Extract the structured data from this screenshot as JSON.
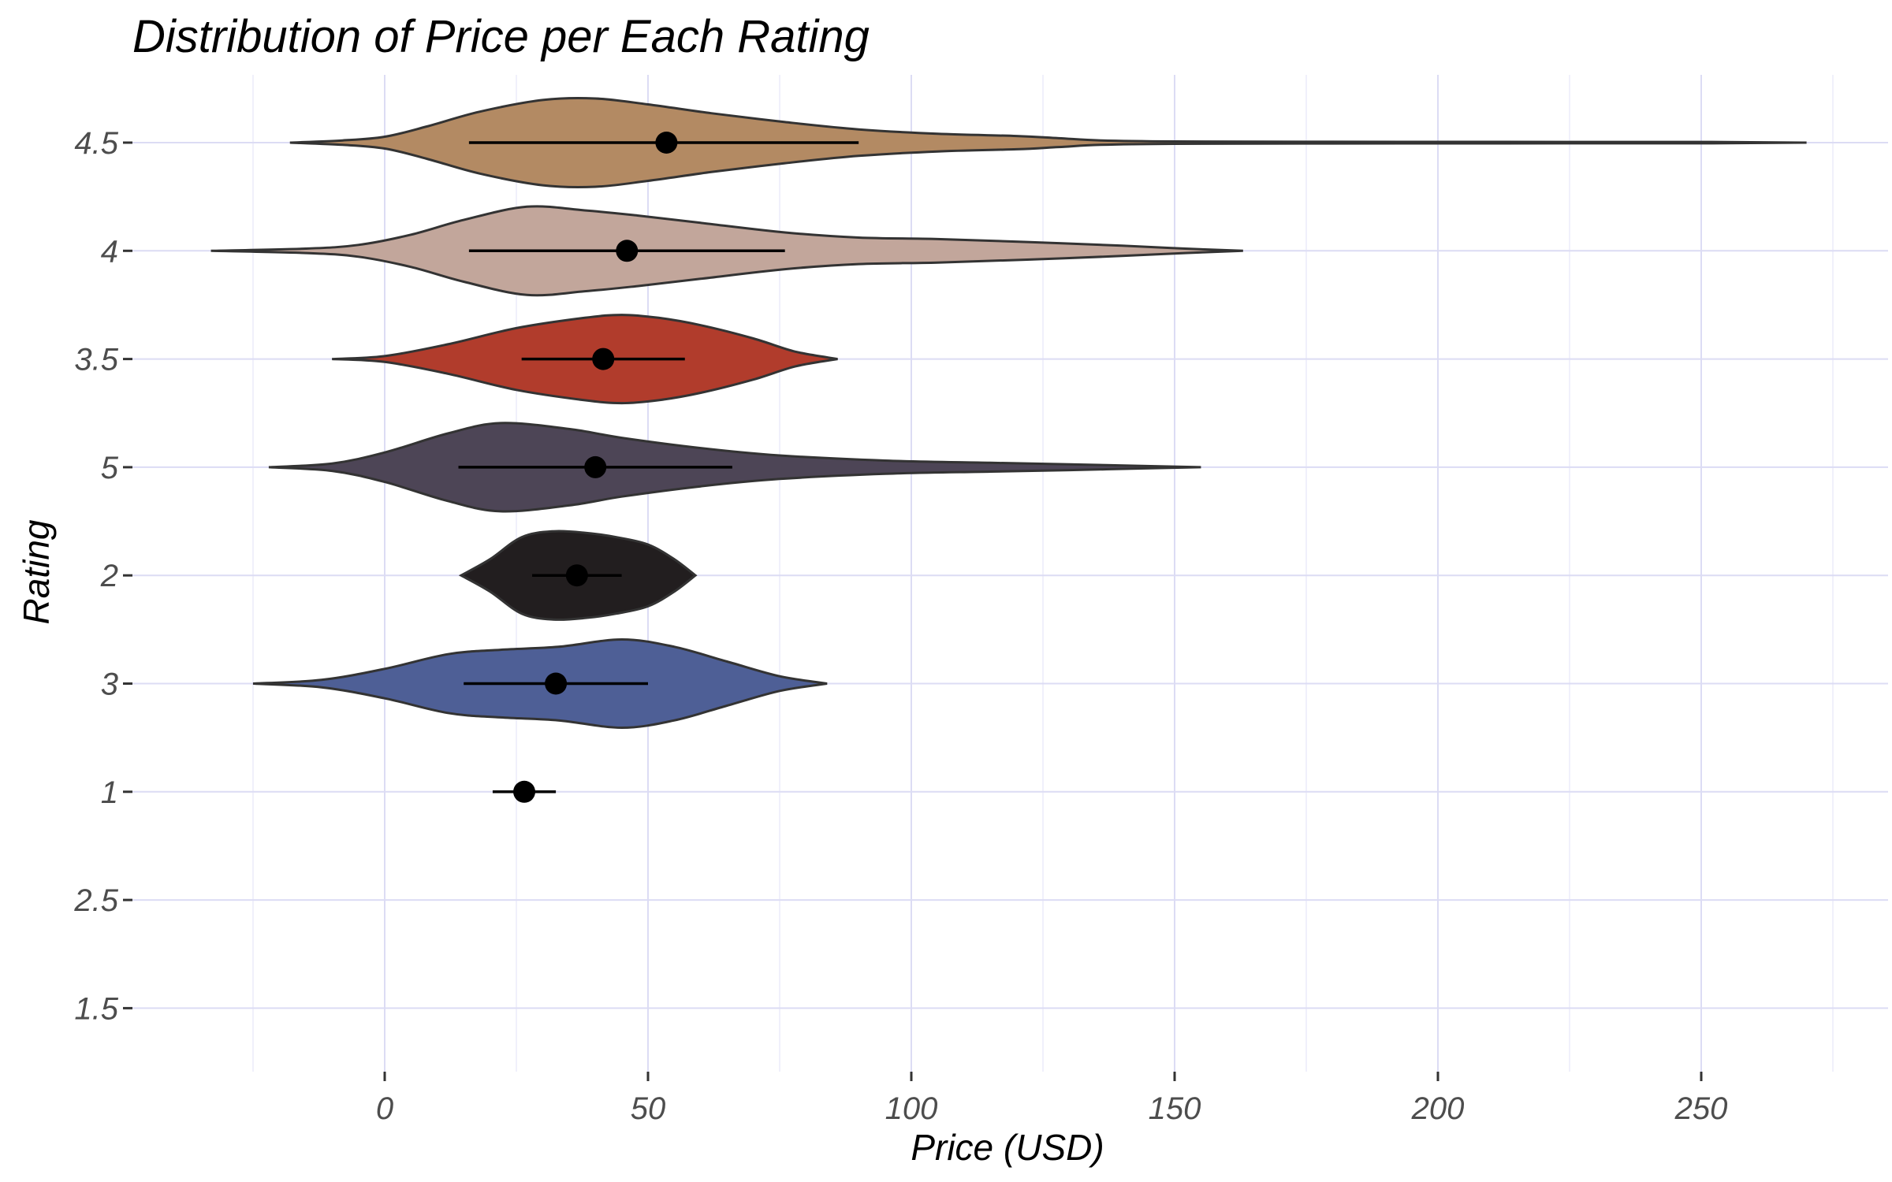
{
  "chart_data": {
    "type": "violin",
    "title": "Distribution of Price per Each Rating",
    "xlabel": "Price (USD)",
    "ylabel": "Rating",
    "xlim": [
      -50,
      285
    ],
    "x_ticks": [
      0,
      50,
      100,
      150,
      200,
      250
    ],
    "x_tick_labels": [
      "0",
      "50",
      "100",
      "150",
      "200",
      "250"
    ],
    "categories": [
      "4.5",
      "4",
      "3.5",
      "5",
      "2",
      "3",
      "1",
      "2.5",
      "1.5"
    ],
    "grid": true,
    "legend": "none",
    "series": [
      {
        "rating": "4.5",
        "color": "#B38A63",
        "mean": 53.5,
        "line_lo": 16,
        "line_hi": 90,
        "density": [
          [
            -18,
            0.0
          ],
          [
            -8,
            0.03
          ],
          [
            0,
            0.08
          ],
          [
            8,
            0.22
          ],
          [
            18,
            0.42
          ],
          [
            30,
            0.58
          ],
          [
            40,
            0.6
          ],
          [
            50,
            0.52
          ],
          [
            62,
            0.4
          ],
          [
            76,
            0.28
          ],
          [
            90,
            0.18
          ],
          [
            105,
            0.12
          ],
          [
            120,
            0.09
          ],
          [
            128,
            0.06
          ],
          [
            136,
            0.03
          ],
          [
            150,
            0.016
          ],
          [
            180,
            0.012
          ],
          [
            225,
            0.01
          ],
          [
            252,
            0.01
          ],
          [
            270,
            0.0
          ]
        ]
      },
      {
        "rating": "4",
        "color": "#C2A69B",
        "mean": 46,
        "line_lo": 16,
        "line_hi": 76,
        "density": [
          [
            -33,
            0.0
          ],
          [
            -15,
            0.03
          ],
          [
            -5,
            0.08
          ],
          [
            5,
            0.22
          ],
          [
            15,
            0.42
          ],
          [
            27,
            0.6
          ],
          [
            38,
            0.55
          ],
          [
            48,
            0.48
          ],
          [
            60,
            0.38
          ],
          [
            76,
            0.25
          ],
          [
            90,
            0.18
          ],
          [
            105,
            0.16
          ],
          [
            122,
            0.12
          ],
          [
            140,
            0.07
          ],
          [
            152,
            0.03
          ],
          [
            163,
            0.0
          ]
        ]
      },
      {
        "rating": "3.5",
        "color": "#B13C2C",
        "mean": 41.5,
        "line_lo": 26,
        "line_hi": 57,
        "density": [
          [
            -10,
            0.0
          ],
          [
            0,
            0.04
          ],
          [
            12,
            0.2
          ],
          [
            25,
            0.42
          ],
          [
            38,
            0.56
          ],
          [
            45,
            0.6
          ],
          [
            52,
            0.56
          ],
          [
            60,
            0.46
          ],
          [
            70,
            0.28
          ],
          [
            78,
            0.1
          ],
          [
            86,
            0.0
          ]
        ]
      },
      {
        "rating": "5",
        "color": "#4D4556",
        "mean": 40,
        "line_lo": 14,
        "line_hi": 66,
        "density": [
          [
            -22,
            0.0
          ],
          [
            -10,
            0.05
          ],
          [
            0,
            0.2
          ],
          [
            12,
            0.46
          ],
          [
            22,
            0.6
          ],
          [
            35,
            0.52
          ],
          [
            45,
            0.4
          ],
          [
            60,
            0.26
          ],
          [
            75,
            0.16
          ],
          [
            95,
            0.09
          ],
          [
            115,
            0.06
          ],
          [
            130,
            0.04
          ],
          [
            142,
            0.02
          ],
          [
            155,
            0.0
          ]
        ]
      },
      {
        "rating": "2",
        "color": "#221E1F",
        "mean": 36.5,
        "line_lo": 28,
        "line_hi": 45,
        "density": [
          [
            14.5,
            0.0
          ],
          [
            20,
            0.22
          ],
          [
            26,
            0.52
          ],
          [
            32,
            0.6
          ],
          [
            38,
            0.58
          ],
          [
            44,
            0.52
          ],
          [
            50,
            0.42
          ],
          [
            55,
            0.22
          ],
          [
            59,
            0.0
          ]
        ]
      },
      {
        "rating": "3",
        "color": "#4E5F96",
        "mean": 32.5,
        "line_lo": 15,
        "line_hi": 50,
        "density": [
          [
            -25,
            0.0
          ],
          [
            -12,
            0.05
          ],
          [
            0,
            0.2
          ],
          [
            12,
            0.4
          ],
          [
            22,
            0.46
          ],
          [
            33,
            0.5
          ],
          [
            45,
            0.6
          ],
          [
            55,
            0.5
          ],
          [
            65,
            0.3
          ],
          [
            75,
            0.1
          ],
          [
            84,
            0.0
          ]
        ]
      },
      {
        "rating": "1",
        "color": "#000000",
        "mean": 26.5,
        "line_lo": 20.5,
        "line_hi": 32.5,
        "density": []
      }
    ]
  }
}
